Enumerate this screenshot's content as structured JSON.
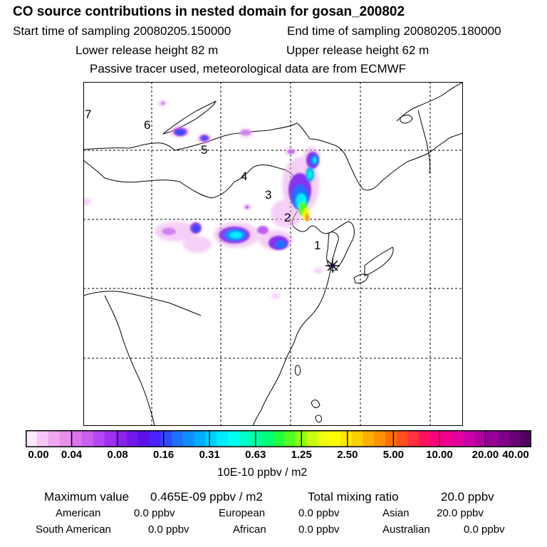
{
  "header": {
    "title": "CO  source contributions in nested domain for gosan_200802",
    "start_label": "Start time of sampling 20080205.150000",
    "end_label": "End time of sampling 20080205.180000",
    "lower_label": "Lower release height   82 m",
    "upper_label": "Upper release height   62 m",
    "tracer_note": "Passive tracer used, meteorological data are from ECMWF"
  },
  "map": {
    "site_marker": "asterisk-icon",
    "region_labels": [
      "1",
      "2",
      "3",
      "4",
      "5",
      "6",
      "7"
    ]
  },
  "colorbar": {
    "ticks": [
      "0.00",
      "0.04",
      "0.08",
      "0.16",
      "0.31",
      "0.63",
      "1.25",
      "2.50",
      "5.00",
      "10.00",
      "20.00",
      "40.00"
    ],
    "unit": "10E-10 ppbv / m2",
    "colors": [
      "#fde8fd",
      "#f7c8f7",
      "#efa8f0",
      "#e890ec",
      "#d873ec",
      "#c860ee",
      "#b548f0",
      "#a030f0",
      "#8a22ee",
      "#7218ea",
      "#5a10e6",
      "#4a20ff",
      "#3048ff",
      "#2070ff",
      "#1090ff",
      "#00b0ff",
      "#00d0ff",
      "#00ecff",
      "#00fff0",
      "#00ffc8",
      "#00ffa0",
      "#00ff78",
      "#20ff40",
      "#50ff20",
      "#90ff10",
      "#c8ff10",
      "#f0ff10",
      "#ffff00",
      "#ffe800",
      "#ffd000",
      "#ffb000",
      "#ff9000",
      "#ff7000",
      "#ff5020",
      "#ff3040",
      "#ff1060",
      "#ff0080",
      "#f00090",
      "#e000a0",
      "#c800a8",
      "#b000a0",
      "#980098",
      "#800088",
      "#680078",
      "#500060"
    ]
  },
  "stats": {
    "max_label": "Maximum value",
    "max_value": "0.465E-09 ppbv / m2",
    "total_label": "Total mixing ratio",
    "total_value": "20.0 ppbv",
    "regions": [
      {
        "name": "American",
        "value": "0.0 ppbv"
      },
      {
        "name": "European",
        "value": "0.0 ppbv"
      },
      {
        "name": "Asian",
        "value": "20.0 ppbv"
      },
      {
        "name": "South American",
        "value": "0.0 ppbv"
      },
      {
        "name": "African",
        "value": "0.0 ppbv"
      },
      {
        "name": "Australian",
        "value": "0.0 ppbv"
      }
    ]
  }
}
